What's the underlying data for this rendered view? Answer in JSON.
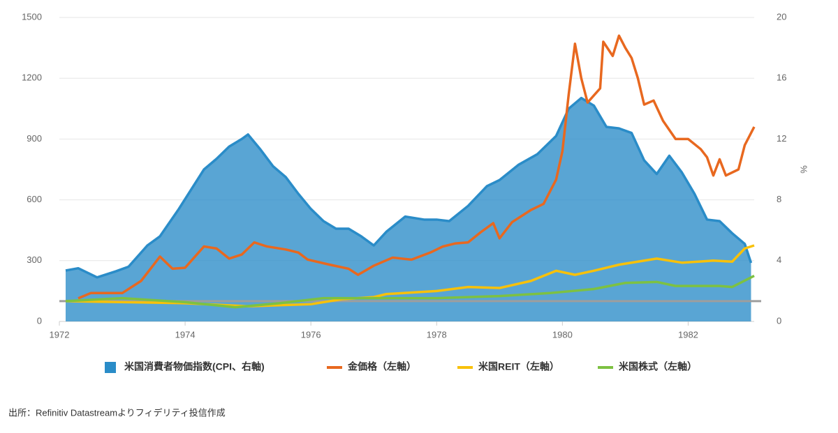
{
  "chart_data": {
    "type": "line",
    "y2label": "%",
    "source": "出所：Refinitiv Datastreamよりフィデリティ投信作成",
    "xlim": [
      1972,
      1983.05
    ],
    "xticks": [
      1972,
      1974,
      1976,
      1978,
      1980,
      1982
    ],
    "ylim": [
      0,
      1500
    ],
    "yticks": [
      0,
      300,
      600,
      900,
      1200,
      1500
    ],
    "y2lim": [
      0,
      20
    ],
    "y2ticks": [
      0,
      4,
      8,
      12,
      16,
      20
    ],
    "reference_line": 100,
    "reference_color": "#9e9e9e",
    "series": [
      {
        "name": "米国消費者物価指数(CPI、右軸)",
        "color": "#2a8cc8",
        "kind": "area",
        "axis": "y2",
        "x": [
          1972.1,
          1972.3,
          1972.6,
          1972.9,
          1973.1,
          1973.4,
          1973.6,
          1973.9,
          1974.1,
          1974.3,
          1974.5,
          1974.7,
          1974.9,
          1975.0,
          1975.2,
          1975.4,
          1975.6,
          1975.8,
          1976.0,
          1976.2,
          1976.4,
          1976.6,
          1976.8,
          1977.0,
          1977.2,
          1977.5,
          1977.8,
          1978.0,
          1978.2,
          1978.5,
          1978.8,
          1979.0,
          1979.3,
          1979.6,
          1979.9,
          1980.1,
          1980.3,
          1980.5,
          1980.7,
          1980.9,
          1981.1,
          1981.3,
          1981.5,
          1981.7,
          1981.9,
          1982.1,
          1982.3,
          1982.5,
          1982.7,
          1982.9,
          1983.0
        ],
        "values": [
          3.35,
          3.5,
          2.9,
          3.3,
          3.6,
          5.0,
          5.6,
          7.4,
          8.7,
          10.0,
          10.7,
          11.5,
          12.0,
          12.3,
          11.3,
          10.2,
          9.5,
          8.4,
          7.4,
          6.6,
          6.1,
          6.1,
          5.6,
          5.0,
          5.9,
          6.9,
          6.7,
          6.7,
          6.6,
          7.6,
          8.9,
          9.3,
          10.3,
          11.0,
          12.2,
          14.0,
          14.7,
          14.2,
          12.8,
          12.7,
          12.4,
          10.6,
          9.7,
          10.9,
          9.8,
          8.4,
          6.7,
          6.6,
          5.8,
          5.1,
          3.85
        ]
      },
      {
        "name": "金価格（左軸）",
        "color": "#e8681f",
        "kind": "line",
        "x": [
          1972.3,
          1972.5,
          1973.0,
          1973.3,
          1973.6,
          1973.8,
          1974.0,
          1974.3,
          1974.5,
          1974.7,
          1974.9,
          1975.1,
          1975.3,
          1975.6,
          1975.8,
          1975.95,
          1976.3,
          1976.6,
          1976.75,
          1977.0,
          1977.3,
          1977.6,
          1977.9,
          1978.1,
          1978.3,
          1978.5,
          1978.7,
          1978.9,
          1979.0,
          1979.2,
          1979.5,
          1979.7,
          1979.9,
          1980.0,
          1980.1,
          1980.2,
          1980.3,
          1980.4,
          1980.6,
          1980.65,
          1980.8,
          1980.9,
          1981.0,
          1981.1,
          1981.2,
          1981.3,
          1981.45,
          1981.6,
          1981.8,
          1982.0,
          1982.2,
          1982.3,
          1982.4,
          1982.5,
          1982.6,
          1982.8,
          1982.9,
          1983.05
        ],
        "values": [
          114,
          140,
          140,
          200,
          320,
          260,
          265,
          370,
          360,
          310,
          330,
          390,
          370,
          355,
          340,
          305,
          280,
          260,
          230,
          275,
          315,
          305,
          340,
          370,
          385,
          390,
          440,
          485,
          410,
          490,
          550,
          580,
          700,
          840,
          1120,
          1370,
          1200,
          1080,
          1150,
          1380,
          1310,
          1410,
          1350,
          1300,
          1200,
          1070,
          1090,
          990,
          900,
          900,
          850,
          810,
          720,
          800,
          720,
          750,
          870,
          960
        ]
      },
      {
        "name": "米国REIT（左軸）",
        "color": "#f8c10a",
        "kind": "line",
        "x": [
          1972.1,
          1974.0,
          1975.0,
          1976.0,
          1976.5,
          1977.0,
          1977.2,
          1978.0,
          1978.5,
          1979.0,
          1979.5,
          1979.9,
          1980.2,
          1980.5,
          1980.9,
          1981.5,
          1981.9,
          1982.4,
          1982.7,
          1982.9,
          1983.05
        ],
        "values": [
          100,
          90,
          75,
          85,
          110,
          120,
          135,
          150,
          170,
          165,
          200,
          250,
          230,
          250,
          280,
          310,
          290,
          300,
          295,
          360,
          375
        ]
      },
      {
        "name": "米国株式（左軸）",
        "color": "#7dc142",
        "kind": "line",
        "x": [
          1972.1,
          1973.0,
          1974.0,
          1974.8,
          1975.5,
          1976.2,
          1977.0,
          1978.0,
          1979.0,
          1979.8,
          1980.5,
          1981.0,
          1981.5,
          1981.8,
          1982.5,
          1982.7,
          1983.05
        ],
        "values": [
          100,
          115,
          95,
          70,
          90,
          115,
          115,
          115,
          125,
          140,
          160,
          190,
          195,
          175,
          175,
          170,
          225
        ]
      }
    ]
  }
}
